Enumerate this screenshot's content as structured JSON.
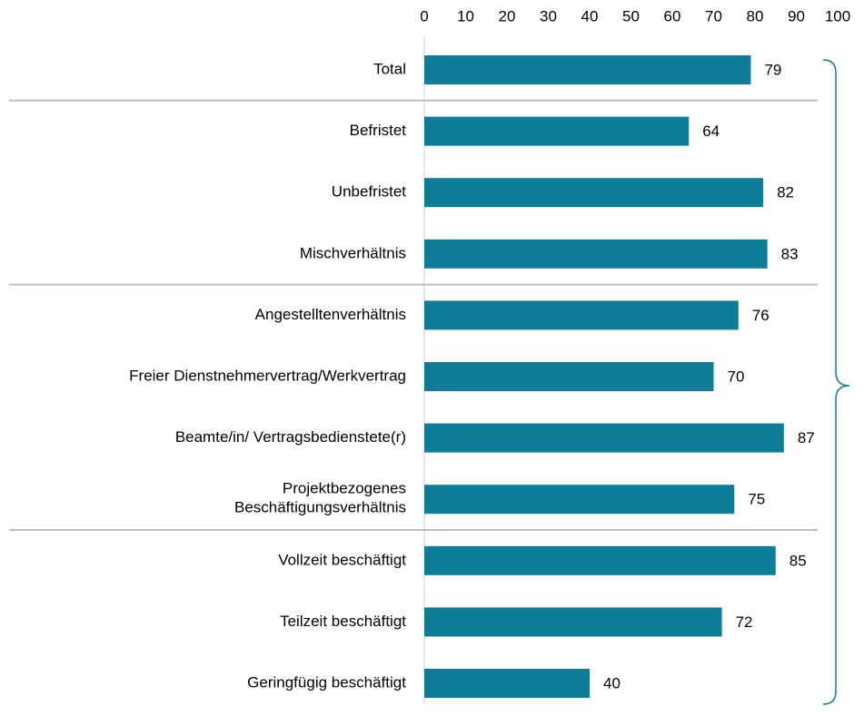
{
  "chart_data": {
    "type": "hbar",
    "categories": [
      "Total",
      "Befristet",
      "Unbefristet",
      "Mischverhältnis",
      "Angestelltenverhältnis",
      "Freier Dienstnehmervertrag/Werkvertrag",
      "Beamte/in/ Vertragsbedienstete(r)",
      "Projektbezogenes\nBeschäftigungsverhältnis",
      "Vollzeit beschäftigt",
      "Teilzeit beschäftigt",
      "Geringfügig beschäftigt"
    ],
    "values": [
      79,
      64,
      82,
      83,
      76,
      70,
      87,
      75,
      85,
      72,
      40
    ],
    "color": "#0e7d98",
    "xlim": [
      0,
      100
    ],
    "xticks": [
      0,
      10,
      20,
      30,
      40,
      50,
      60,
      70,
      80,
      90,
      100
    ],
    "grid": false
  }
}
